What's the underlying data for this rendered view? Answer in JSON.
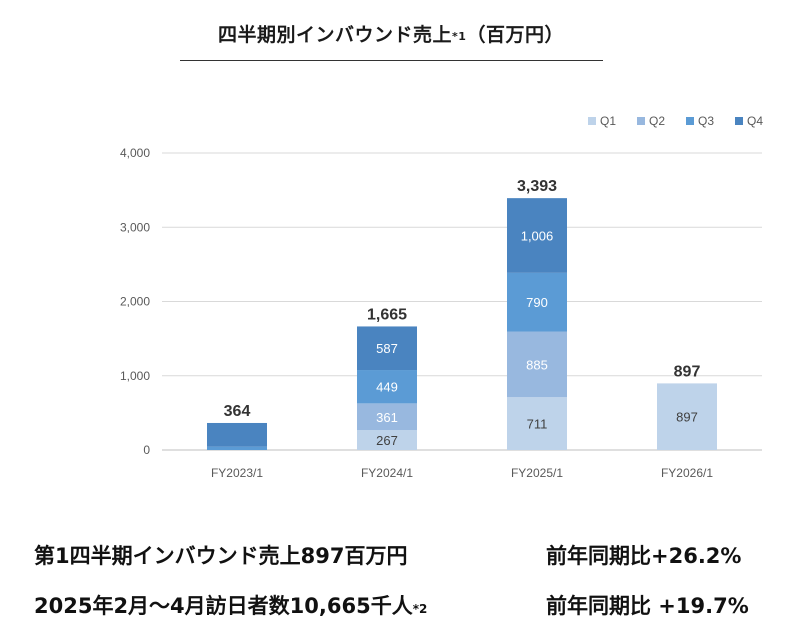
{
  "title": {
    "main": "四半期別インバウンド売上",
    "note": "*1",
    "unit": "（百万円）"
  },
  "colors": {
    "Q1": "#bed3ea",
    "Q2": "#98b8df",
    "Q3": "#5b9bd5",
    "Q4": "#4a84c0"
  },
  "chart_data": {
    "type": "bar",
    "stacked": true,
    "categories": [
      "FY2023/1",
      "FY2024/1",
      "FY2025/1",
      "FY2026/1"
    ],
    "series": [
      {
        "name": "Q1",
        "values": [
          0,
          267,
          711,
          897
        ],
        "labels": [
          "",
          "267",
          "711",
          "897"
        ]
      },
      {
        "name": "Q2",
        "values": [
          0,
          361,
          885,
          0
        ],
        "labels": [
          "",
          "361",
          "885",
          ""
        ]
      },
      {
        "name": "Q3",
        "values": [
          45,
          449,
          790,
          0
        ],
        "labels": [
          "",
          "449",
          "790",
          ""
        ]
      },
      {
        "name": "Q4",
        "values": [
          319,
          587,
          1006,
          0
        ],
        "labels": [
          "",
          "587",
          "1,006",
          ""
        ]
      }
    ],
    "totals": [
      "364",
      "1,665",
      "3,393",
      "897"
    ],
    "yticks": [
      "0",
      "1,000",
      "2,000",
      "3,000",
      "4,000"
    ],
    "ylim": [
      0,
      4000
    ],
    "grid": true,
    "legend_position": "top-right"
  },
  "footer": {
    "line1_left": "第1四半期インバウンド売上897百万円",
    "line1_right": "前年同期比+26.2%",
    "line2_left": "2025年2月～4月訪日者数10,665千人",
    "line2_note": "*2",
    "line2_right": "前年同期比 +19.7%"
  }
}
